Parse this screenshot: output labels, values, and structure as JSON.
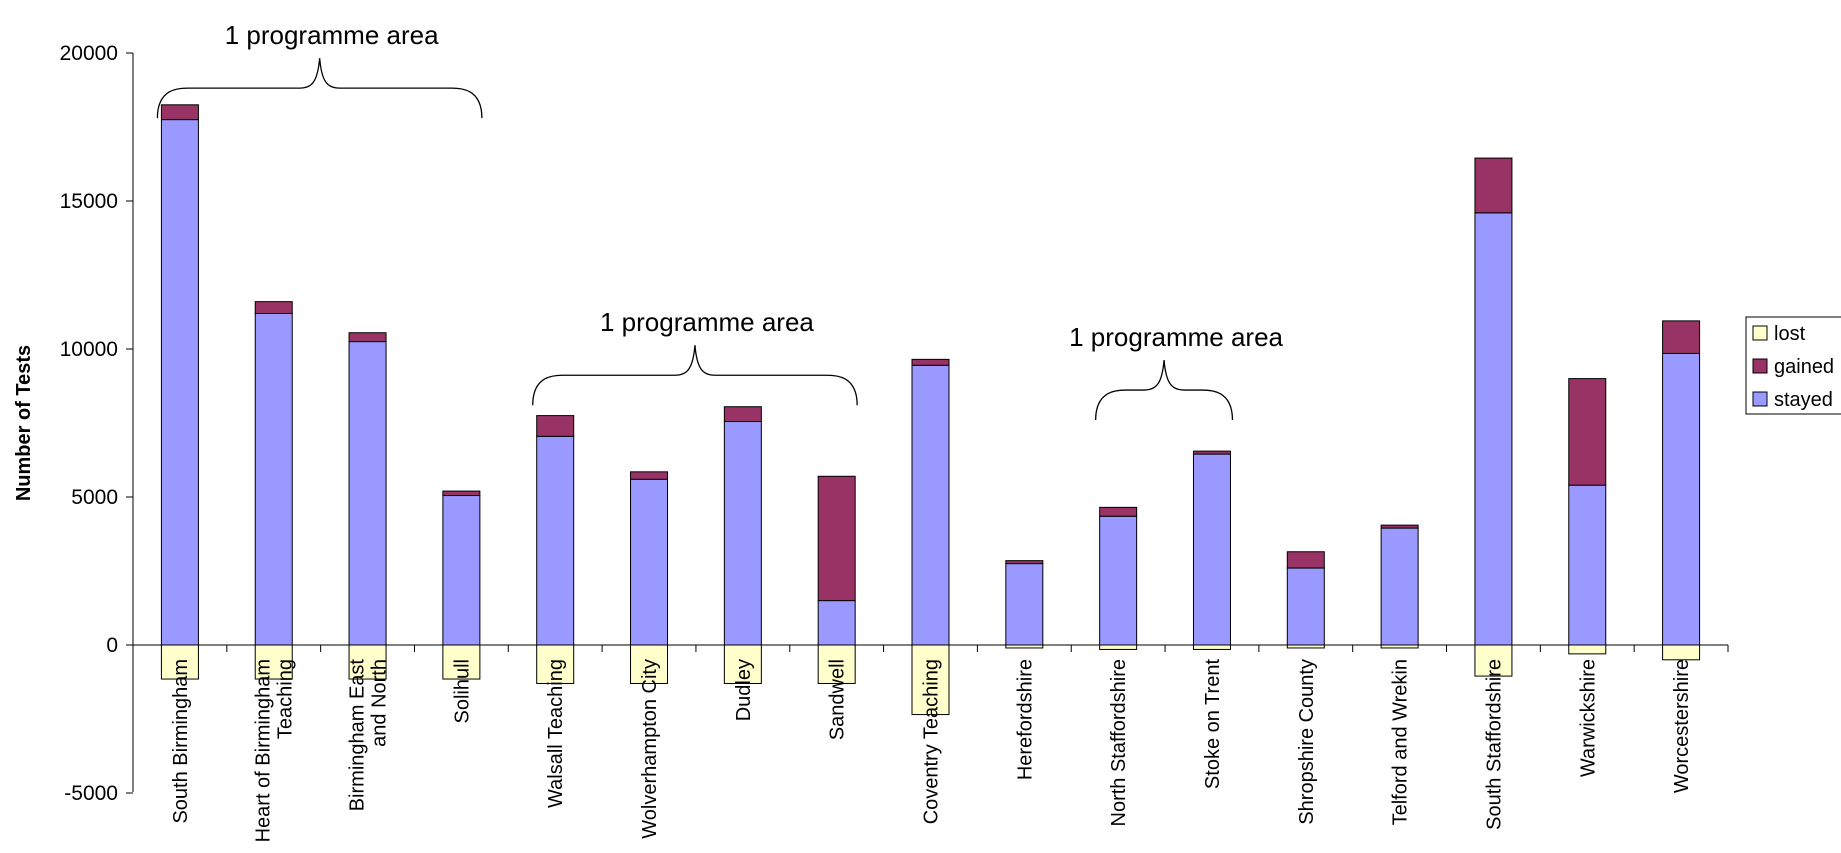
{
  "chart_data": {
    "type": "bar",
    "stacked": true,
    "ylabel": "Number of Tests",
    "xlabel": "",
    "ylim": [
      -5000,
      20000
    ],
    "yticks": [
      -5000,
      0,
      5000,
      10000,
      15000,
      20000
    ],
    "grid": false,
    "legend_position": "right",
    "categories": [
      [
        "South Birmingham"
      ],
      [
        "Heart of Birmingham",
        "Teaching"
      ],
      [
        "Birmingham East",
        "and North"
      ],
      [
        "Solihull"
      ],
      [
        "Walsall Teaching"
      ],
      [
        "Wolverhampton City"
      ],
      [
        "Dudley"
      ],
      [
        "Sandwell"
      ],
      [
        "Coventry Teaching"
      ],
      [
        "Herefordshire"
      ],
      [
        "North Staffordshire"
      ],
      [
        "Stoke on Trent"
      ],
      [
        "Shropshire County"
      ],
      [
        "Telford and Wrekin"
      ],
      [
        "South Staffordshire"
      ],
      [
        "Warwickshire"
      ],
      [
        "Worcestershire"
      ]
    ],
    "series": [
      {
        "name": "lost",
        "color": "#FFFFCC",
        "values": [
          -1150,
          -1150,
          -1150,
          -1150,
          -1300,
          -1300,
          -1300,
          -1300,
          -2350,
          -100,
          -150,
          -150,
          -100,
          -100,
          -1050,
          -300,
          -500
        ]
      },
      {
        "name": "gained",
        "color": "#993366",
        "values": [
          500,
          400,
          300,
          150,
          700,
          250,
          500,
          4200,
          200,
          100,
          300,
          100,
          550,
          100,
          1850,
          3600,
          1100
        ]
      },
      {
        "name": "stayed",
        "color": "#9999FF",
        "values": [
          17750,
          11200,
          10250,
          5050,
          7050,
          5600,
          7550,
          1500,
          9450,
          2750,
          4350,
          6450,
          2600,
          3950,
          14600,
          5400,
          9850
        ]
      }
    ],
    "annotations": [
      {
        "text": "1 programme area",
        "from": 0,
        "to": 3,
        "y": 17800
      },
      {
        "text": "1 programme area",
        "from": 4,
        "to": 7,
        "y": 8100
      },
      {
        "text": "1 programme area",
        "from": 10,
        "to": 11,
        "y": 7600
      }
    ]
  }
}
